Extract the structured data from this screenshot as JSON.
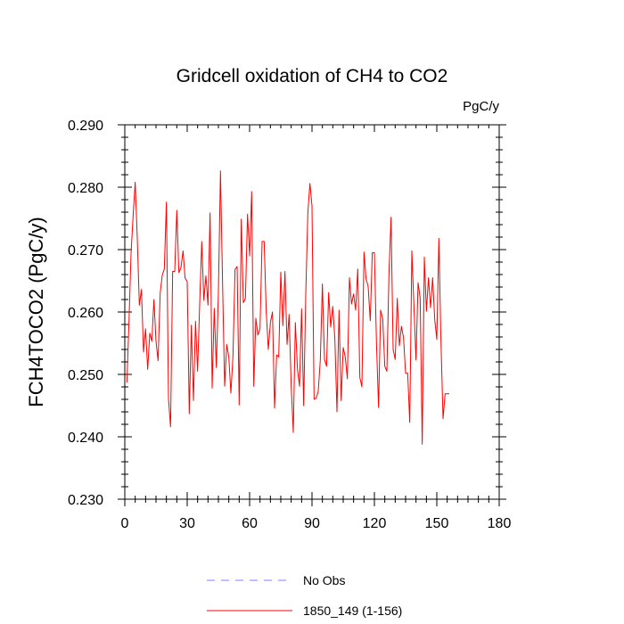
{
  "chart_data": {
    "type": "line",
    "title": "Gridcell oxidation of CH4 to CO2",
    "units": "PgC/y",
    "xlabel": "",
    "ylabel": "FCH4TOCO2  (PgC/y)",
    "xlim": [
      0,
      180
    ],
    "ylim": [
      0.23,
      0.29
    ],
    "x_ticks": [
      0,
      30,
      60,
      90,
      120,
      150,
      180
    ],
    "x_tick_labels": [
      "0",
      "30",
      "60",
      "90",
      "120",
      "150",
      "180"
    ],
    "y_ticks": [
      0.23,
      0.24,
      0.25,
      0.26,
      0.27,
      0.28,
      0.29
    ],
    "y_tick_labels": [
      "0.230",
      "0.240",
      "0.250",
      "0.260",
      "0.270",
      "0.280",
      "0.290"
    ],
    "grid": false,
    "legend": [
      {
        "label": "No Obs",
        "color": "#8080ff",
        "style": "dashed"
      },
      {
        "label": "1850_149 (1-156)",
        "color": "#ff0000",
        "style": "solid"
      }
    ],
    "series": [
      {
        "name": "1850_149 (1-156)",
        "color": "#ff0000",
        "x_start": 1,
        "values": [
          0.2487,
          0.2583,
          0.2694,
          0.2754,
          0.2808,
          0.2718,
          0.2611,
          0.2636,
          0.2536,
          0.2573,
          0.2508,
          0.2566,
          0.2553,
          0.262,
          0.2553,
          0.2522,
          0.263,
          0.2659,
          0.2669,
          0.2776,
          0.2461,
          0.2416,
          0.2665,
          0.2665,
          0.2763,
          0.2663,
          0.2671,
          0.2698,
          0.2654,
          0.2649,
          0.2437,
          0.2579,
          0.2458,
          0.2585,
          0.2505,
          0.2613,
          0.2713,
          0.2619,
          0.2658,
          0.2611,
          0.2759,
          0.2478,
          0.2606,
          0.2511,
          0.2631,
          0.2826,
          0.2646,
          0.2481,
          0.2548,
          0.2528,
          0.247,
          0.2529,
          0.2668,
          0.2673,
          0.2451,
          0.2749,
          0.2615,
          0.2622,
          0.2757,
          0.269,
          0.2793,
          0.2481,
          0.259,
          0.2563,
          0.2573,
          0.2713,
          0.2713,
          0.26,
          0.254,
          0.2583,
          0.26,
          0.2446,
          0.2531,
          0.2528,
          0.2664,
          0.2578,
          0.2665,
          0.2548,
          0.2596,
          0.2481,
          0.2407,
          0.2583,
          0.2509,
          0.2481,
          0.2605,
          0.245,
          0.2628,
          0.2759,
          0.2806,
          0.277,
          0.246,
          0.2462,
          0.2473,
          0.2523,
          0.2645,
          0.2524,
          0.2513,
          0.2631,
          0.2576,
          0.2609,
          0.2556,
          0.244,
          0.2603,
          0.2458,
          0.2543,
          0.2528,
          0.2493,
          0.2655,
          0.2613,
          0.2629,
          0.2603,
          0.2669,
          0.2495,
          0.248,
          0.2696,
          0.2653,
          0.2641,
          0.2586,
          0.2695,
          0.2695,
          0.255,
          0.2447,
          0.2603,
          0.2589,
          0.2513,
          0.2505,
          0.2661,
          0.2752,
          0.254,
          0.2524,
          0.2622,
          0.2546,
          0.2577,
          0.2559,
          0.2502,
          0.2502,
          0.2423,
          0.2698,
          0.261,
          0.2523,
          0.2647,
          0.2623,
          0.2388,
          0.2688,
          0.2601,
          0.2655,
          0.2607,
          0.2655,
          0.2588,
          0.2556,
          0.2718,
          0.2553,
          0.2429,
          0.2469,
          0.2469,
          0.2469
        ]
      }
    ]
  }
}
